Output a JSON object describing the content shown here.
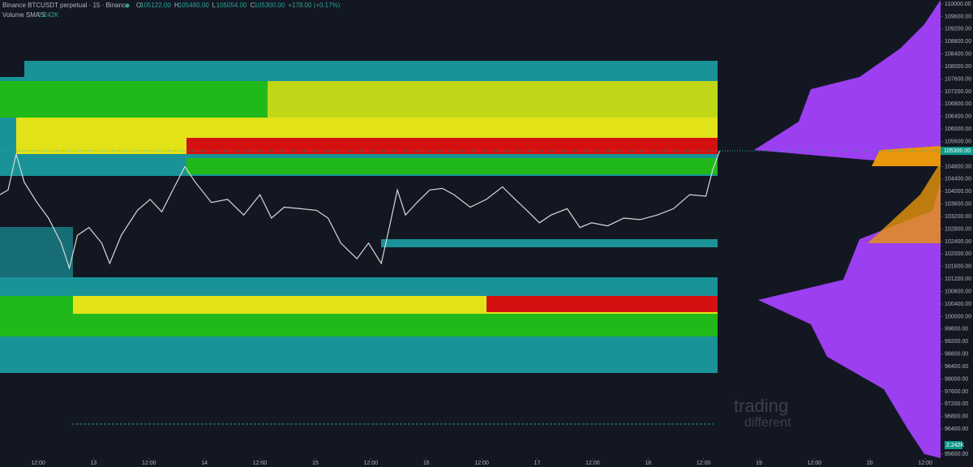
{
  "chart_data": {
    "type": "line",
    "title": "Binance BTCUSDT perpetual · 15 · Binance",
    "ohlc": [
      {
        "key": "O",
        "text": "105122.00"
      },
      {
        "key": "H",
        "text": "105480.00"
      },
      {
        "key": "L",
        "text": "105054.00"
      },
      {
        "key": "C",
        "text": "105300.00"
      }
    ],
    "change": "+178.00 (+0.17%)",
    "indicator": "Volume SMA 9",
    "indicator_value": "2.242K",
    "last_price_label": "105300.00",
    "watermark": [
      "trading",
      "different"
    ],
    "x": [
      3.75,
      5.5,
      7.25,
      9,
      11.75,
      14.25,
      17,
      18.75,
      20.5,
      23,
      25.75,
      27.5,
      30,
      33.5,
      36.25,
      38.75,
      41.5,
      43.75,
      46,
      49.5,
      53,
      56.5,
      60,
      62.5,
      65.25,
      68.75,
      72.25,
      74.75,
      77.5,
      81,
      83.5,
      86.25,
      88,
      89.75,
      91.5,
      94,
      96.75,
      99.5,
      102,
      105.5,
      109,
      112.5,
      115.25,
      117.75,
      120.5,
      123,
      126.5,
      129.25,
      131.75,
      135.25,
      138.75,
      142.25,
      146,
      149.5,
      153,
      156.5,
      158,
      159.5
    ],
    "series": [
      {
        "color": "#d8d8d8",
        "values": [
          103900,
          104050,
          105200,
          104300,
          103650,
          103150,
          102350,
          101550,
          102600,
          102850,
          102350,
          101700,
          102600,
          103400,
          103750,
          103350,
          104150,
          104800,
          104300,
          103650,
          103750,
          103250,
          103900,
          103150,
          103500,
          103450,
          103400,
          103150,
          102350,
          101850,
          102350,
          101700,
          102850,
          104050,
          103250,
          103650,
          104050,
          104100,
          103900,
          103500,
          103750,
          104150,
          103750,
          103400,
          103000,
          103250,
          103450,
          102850,
          103000,
          102900,
          103150,
          103100,
          103250,
          103450,
          103900,
          103850,
          104700,
          105300
        ]
      }
    ],
    "xlim": [
      3.75,
      207.3
    ],
    "xticks": [
      {
        "value": 12,
        "label": "12:00"
      },
      {
        "value": 24,
        "label": "13"
      },
      {
        "value": 36,
        "label": "12:00"
      },
      {
        "value": 48,
        "label": "14"
      },
      {
        "value": 60,
        "label": "12:00"
      },
      {
        "value": 72,
        "label": "15"
      },
      {
        "value": 84,
        "label": "12:00"
      },
      {
        "value": 96,
        "label": "16"
      },
      {
        "value": 108,
        "label": "12:00"
      },
      {
        "value": 120,
        "label": "17"
      },
      {
        "value": 132,
        "label": "12:00"
      },
      {
        "value": 144,
        "label": "18"
      },
      {
        "value": 156,
        "label": "12:00"
      },
      {
        "value": 168,
        "label": "19"
      },
      {
        "value": 180,
        "label": "12:00"
      },
      {
        "value": 192,
        "label": "20"
      },
      {
        "value": 204,
        "label": "12:00"
      }
    ],
    "ylim": [
      95470,
      110130
    ],
    "yticks": [
      {
        "value": 110000,
        "label": "110000.00"
      },
      {
        "value": 109600,
        "label": "109600.00"
      },
      {
        "value": 109200,
        "label": "109200.00"
      },
      {
        "value": 108800,
        "label": "108800.00"
      },
      {
        "value": 108400,
        "label": "108400.00"
      },
      {
        "value": 108000,
        "label": "108000.00"
      },
      {
        "value": 107600,
        "label": "107600.00"
      },
      {
        "value": 107200,
        "label": "107200.00"
      },
      {
        "value": 106800,
        "label": "106800.00"
      },
      {
        "value": 106400,
        "label": "106400.00"
      },
      {
        "value": 106000,
        "label": "106000.00"
      },
      {
        "value": 105600,
        "label": "105600.00"
      },
      {
        "value": 104800,
        "label": "104800.00"
      },
      {
        "value": 104400,
        "label": "104400.00"
      },
      {
        "value": 104000,
        "label": "104000.00"
      },
      {
        "value": 103600,
        "label": "103600.00"
      },
      {
        "value": 103200,
        "label": "103200.00"
      },
      {
        "value": 102800,
        "label": "102800.00"
      },
      {
        "value": 102400,
        "label": "102400.00"
      },
      {
        "value": 102000,
        "label": "102000.00"
      },
      {
        "value": 101600,
        "label": "101600.00"
      },
      {
        "value": 101200,
        "label": "101200.00"
      },
      {
        "value": 100800,
        "label": "100800.00"
      },
      {
        "value": 100400,
        "label": "100400.00"
      },
      {
        "value": 100000,
        "label": "100000.00"
      },
      {
        "value": 99600,
        "label": "99600.00"
      },
      {
        "value": 99200,
        "label": "99200.00"
      },
      {
        "value": 98800,
        "label": "98800.00"
      },
      {
        "value": 98400,
        "label": "98400.00"
      },
      {
        "value": 98000,
        "label": "98000.00"
      },
      {
        "value": 97600,
        "label": "97600.00"
      },
      {
        "value": 97200,
        "label": "97200.00"
      },
      {
        "value": 96800,
        "label": "96800.00"
      },
      {
        "value": 96400,
        "label": "96400.00"
      },
      {
        "value": 95600,
        "label": "95600.00"
      }
    ]
  }
}
